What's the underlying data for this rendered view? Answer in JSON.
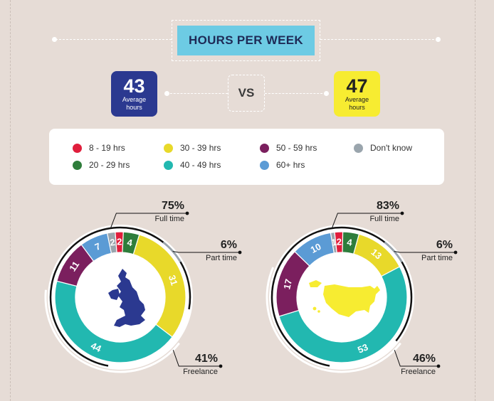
{
  "title": "HOURS PER WEEK",
  "comparison": {
    "left": {
      "value": "43",
      "label_line1": "Average",
      "label_line2": "hours",
      "color": "#2b3990"
    },
    "vs": "VS",
    "right": {
      "value": "47",
      "label_line1": "Average",
      "label_line2": "hours",
      "color": "#f7ec31"
    }
  },
  "legend": [
    {
      "label": "8 - 19 hrs",
      "color": "#e01e3c"
    },
    {
      "label": "20 - 29 hrs",
      "color": "#2e7d3b"
    },
    {
      "label": "30 - 39 hrs",
      "color": "#e8d92a"
    },
    {
      "label": "40 - 49 hrs",
      "color": "#22b8b0"
    },
    {
      "label": "50 - 59 hrs",
      "color": "#7b1f5e"
    },
    {
      "label": "60+ hrs",
      "color": "#5b9bd5"
    },
    {
      "label": "Don't know",
      "color": "#9aa5ad"
    }
  ],
  "chart_data": [
    {
      "type": "donut",
      "region_icon": "uk-map-icon",
      "slices": [
        {
          "category": "8 - 19 hrs",
          "value": 2,
          "label": "2"
        },
        {
          "category": "20 - 29 hrs",
          "value": 4,
          "label": "4"
        },
        {
          "category": "30 - 39 hrs",
          "value": 31,
          "label": "31"
        },
        {
          "category": "40 - 49 hrs",
          "value": 44,
          "label": "44"
        },
        {
          "category": "50 - 59 hrs",
          "value": 11,
          "label": "11"
        },
        {
          "category": "60+ hrs",
          "value": 7,
          "label": "7"
        },
        {
          "category": "Don't know",
          "value": 2,
          "label": "2"
        }
      ],
      "employment": [
        {
          "name": "Full time",
          "value": 75,
          "label": "75%"
        },
        {
          "name": "Part time",
          "value": 6,
          "label": "6%"
        },
        {
          "name": "Freelance",
          "value": 41,
          "label": "41%"
        }
      ]
    },
    {
      "type": "donut",
      "region_icon": "usa-map-icon",
      "slices": [
        {
          "category": "8 - 19 hrs",
          "value": 2,
          "label": "2"
        },
        {
          "category": "20 - 29 hrs",
          "value": 4,
          "label": "4"
        },
        {
          "category": "30 - 39 hrs",
          "value": 13,
          "label": "13"
        },
        {
          "category": "40 - 49 hrs",
          "value": 53,
          "label": "53"
        },
        {
          "category": "50 - 59 hrs",
          "value": 17,
          "label": "17"
        },
        {
          "category": "60+ hrs",
          "value": 10,
          "label": "10"
        },
        {
          "category": "Don't know",
          "value": 1,
          "label": "1"
        }
      ],
      "employment": [
        {
          "name": "Full time",
          "value": 83,
          "label": "83%"
        },
        {
          "name": "Part time",
          "value": 6,
          "label": "6%"
        },
        {
          "name": "Freelance",
          "value": 46,
          "label": "46%"
        }
      ]
    }
  ]
}
